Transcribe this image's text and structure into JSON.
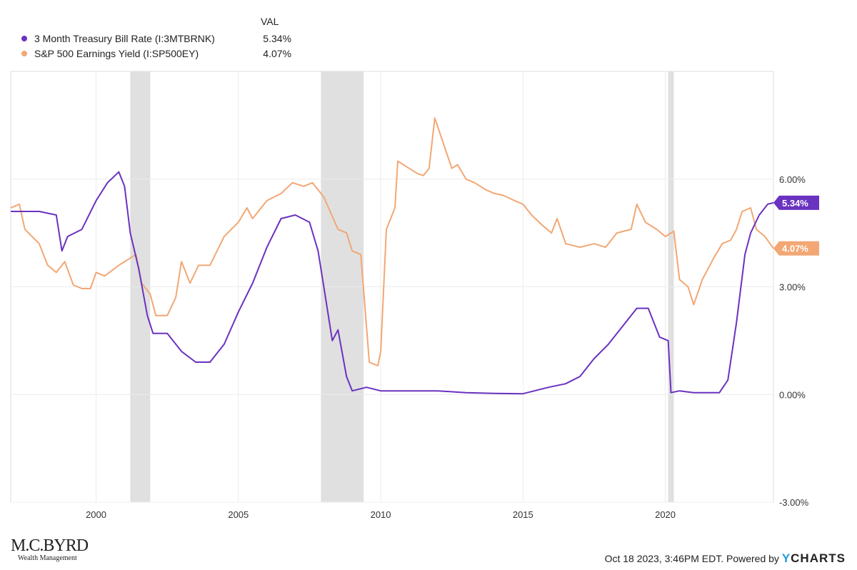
{
  "legend": {
    "header": "VAL",
    "items": [
      {
        "name": "3 Month Treasury Bill Rate (I:3MTBRNK)",
        "value": "5.34%",
        "color": "#6a32c0"
      },
      {
        "name": "S&P 500 Earnings Yield (I:SP500EY)",
        "value": "4.07%",
        "color": "#f2a774"
      }
    ]
  },
  "footer": {
    "timestamp": "Oct 18 2023, 3:46PM EDT. Powered by",
    "brand_y": "Y",
    "brand_rest": "CHARTS"
  },
  "logo": {
    "name": "M.C.BYRD",
    "subtitle": "Wealth Management"
  },
  "chart_data": {
    "type": "line",
    "xlim": [
      1997.0,
      2023.8
    ],
    "ylim": [
      -3,
      9
    ],
    "x_ticks": [
      2000,
      2005,
      2010,
      2015,
      2020
    ],
    "y_ticks": [
      {
        "v": 6,
        "label": "6.00%"
      },
      {
        "v": 3,
        "label": "3.00%"
      },
      {
        "v": 0,
        "label": "0.00%"
      },
      {
        "v": -3,
        "label": "-3.00%"
      }
    ],
    "recessions": [
      [
        2001.2,
        2001.9
      ],
      [
        2007.9,
        2009.4
      ],
      [
        2020.1,
        2020.3
      ]
    ],
    "series": [
      {
        "name": "3 Month Treasury Bill Rate (I:3MTBRNK)",
        "color": "#6a32c0",
        "last_label": "5.34%",
        "points": [
          [
            1997.0,
            5.1
          ],
          [
            1997.5,
            5.1
          ],
          [
            1998.0,
            5.1
          ],
          [
            1998.6,
            5.0
          ],
          [
            1998.8,
            4.0
          ],
          [
            1999.0,
            4.4
          ],
          [
            1999.5,
            4.6
          ],
          [
            2000.0,
            5.4
          ],
          [
            2000.4,
            5.9
          ],
          [
            2000.8,
            6.2
          ],
          [
            2001.0,
            5.8
          ],
          [
            2001.2,
            4.5
          ],
          [
            2001.5,
            3.5
          ],
          [
            2001.8,
            2.2
          ],
          [
            2002.0,
            1.7
          ],
          [
            2002.5,
            1.7
          ],
          [
            2003.0,
            1.2
          ],
          [
            2003.5,
            0.9
          ],
          [
            2004.0,
            0.9
          ],
          [
            2004.5,
            1.4
          ],
          [
            2005.0,
            2.3
          ],
          [
            2005.5,
            3.1
          ],
          [
            2006.0,
            4.1
          ],
          [
            2006.5,
            4.9
          ],
          [
            2007.0,
            5.0
          ],
          [
            2007.5,
            4.8
          ],
          [
            2007.8,
            4.0
          ],
          [
            2008.0,
            3.0
          ],
          [
            2008.3,
            1.5
          ],
          [
            2008.5,
            1.8
          ],
          [
            2008.8,
            0.5
          ],
          [
            2009.0,
            0.1
          ],
          [
            2009.5,
            0.2
          ],
          [
            2010.0,
            0.1
          ],
          [
            2011.0,
            0.1
          ],
          [
            2012.0,
            0.1
          ],
          [
            2013.0,
            0.05
          ],
          [
            2014.0,
            0.03
          ],
          [
            2015.0,
            0.02
          ],
          [
            2015.9,
            0.2
          ],
          [
            2016.5,
            0.3
          ],
          [
            2017.0,
            0.5
          ],
          [
            2017.5,
            1.0
          ],
          [
            2018.0,
            1.4
          ],
          [
            2018.5,
            1.9
          ],
          [
            2019.0,
            2.4
          ],
          [
            2019.4,
            2.4
          ],
          [
            2019.8,
            1.6
          ],
          [
            2020.1,
            1.5
          ],
          [
            2020.2,
            0.05
          ],
          [
            2020.5,
            0.1
          ],
          [
            2021.0,
            0.05
          ],
          [
            2021.9,
            0.05
          ],
          [
            2022.2,
            0.4
          ],
          [
            2022.5,
            2.0
          ],
          [
            2022.8,
            3.9
          ],
          [
            2023.0,
            4.5
          ],
          [
            2023.3,
            5.0
          ],
          [
            2023.6,
            5.3
          ],
          [
            2023.8,
            5.34
          ]
        ]
      },
      {
        "name": "S&P 500 Earnings Yield (I:SP500EY)",
        "color": "#f2a774",
        "last_label": "4.07%",
        "points": [
          [
            1997.0,
            5.2
          ],
          [
            1997.3,
            5.3
          ],
          [
            1997.5,
            4.6
          ],
          [
            1998.0,
            4.2
          ],
          [
            1998.3,
            3.6
          ],
          [
            1998.6,
            3.4
          ],
          [
            1998.9,
            3.7
          ],
          [
            1999.2,
            3.05
          ],
          [
            1999.5,
            2.95
          ],
          [
            1999.8,
            2.95
          ],
          [
            2000.0,
            3.4
          ],
          [
            2000.3,
            3.3
          ],
          [
            2000.8,
            3.6
          ],
          [
            2001.2,
            3.8
          ],
          [
            2001.4,
            3.9
          ],
          [
            2001.6,
            3.1
          ],
          [
            2001.9,
            2.8
          ],
          [
            2002.1,
            2.2
          ],
          [
            2002.5,
            2.2
          ],
          [
            2002.8,
            2.7
          ],
          [
            2003.0,
            3.7
          ],
          [
            2003.3,
            3.1
          ],
          [
            2003.6,
            3.6
          ],
          [
            2004.0,
            3.6
          ],
          [
            2004.5,
            4.4
          ],
          [
            2005.0,
            4.8
          ],
          [
            2005.3,
            5.2
          ],
          [
            2005.5,
            4.9
          ],
          [
            2006.0,
            5.4
          ],
          [
            2006.5,
            5.6
          ],
          [
            2006.9,
            5.9
          ],
          [
            2007.3,
            5.8
          ],
          [
            2007.6,
            5.9
          ],
          [
            2008.0,
            5.5
          ],
          [
            2008.5,
            4.6
          ],
          [
            2008.8,
            4.5
          ],
          [
            2009.0,
            4.0
          ],
          [
            2009.3,
            3.9
          ],
          [
            2009.6,
            0.9
          ],
          [
            2009.9,
            0.8
          ],
          [
            2010.0,
            1.2
          ],
          [
            2010.2,
            4.6
          ],
          [
            2010.5,
            5.2
          ],
          [
            2010.6,
            6.5
          ],
          [
            2011.0,
            6.3
          ],
          [
            2011.3,
            6.15
          ],
          [
            2011.5,
            6.1
          ],
          [
            2011.7,
            6.3
          ],
          [
            2011.9,
            7.7
          ],
          [
            2012.2,
            7.0
          ],
          [
            2012.5,
            6.3
          ],
          [
            2012.7,
            6.4
          ],
          [
            2013.0,
            6.0
          ],
          [
            2013.3,
            5.9
          ],
          [
            2013.7,
            5.7
          ],
          [
            2014.0,
            5.6
          ],
          [
            2014.3,
            5.55
          ],
          [
            2014.7,
            5.4
          ],
          [
            2015.0,
            5.3
          ],
          [
            2015.3,
            5.0
          ],
          [
            2015.7,
            4.7
          ],
          [
            2016.0,
            4.5
          ],
          [
            2016.2,
            4.9
          ],
          [
            2016.5,
            4.2
          ],
          [
            2017.0,
            4.1
          ],
          [
            2017.5,
            4.2
          ],
          [
            2017.9,
            4.1
          ],
          [
            2018.3,
            4.5
          ],
          [
            2018.8,
            4.6
          ],
          [
            2019.0,
            5.3
          ],
          [
            2019.3,
            4.8
          ],
          [
            2019.7,
            4.6
          ],
          [
            2020.0,
            4.4
          ],
          [
            2020.3,
            4.55
          ],
          [
            2020.5,
            3.2
          ],
          [
            2020.8,
            3.0
          ],
          [
            2021.0,
            2.5
          ],
          [
            2021.3,
            3.2
          ],
          [
            2021.7,
            3.8
          ],
          [
            2022.0,
            4.2
          ],
          [
            2022.3,
            4.3
          ],
          [
            2022.5,
            4.6
          ],
          [
            2022.7,
            5.1
          ],
          [
            2023.0,
            5.2
          ],
          [
            2023.2,
            4.6
          ],
          [
            2023.5,
            4.4
          ],
          [
            2023.8,
            4.07
          ]
        ]
      }
    ]
  }
}
